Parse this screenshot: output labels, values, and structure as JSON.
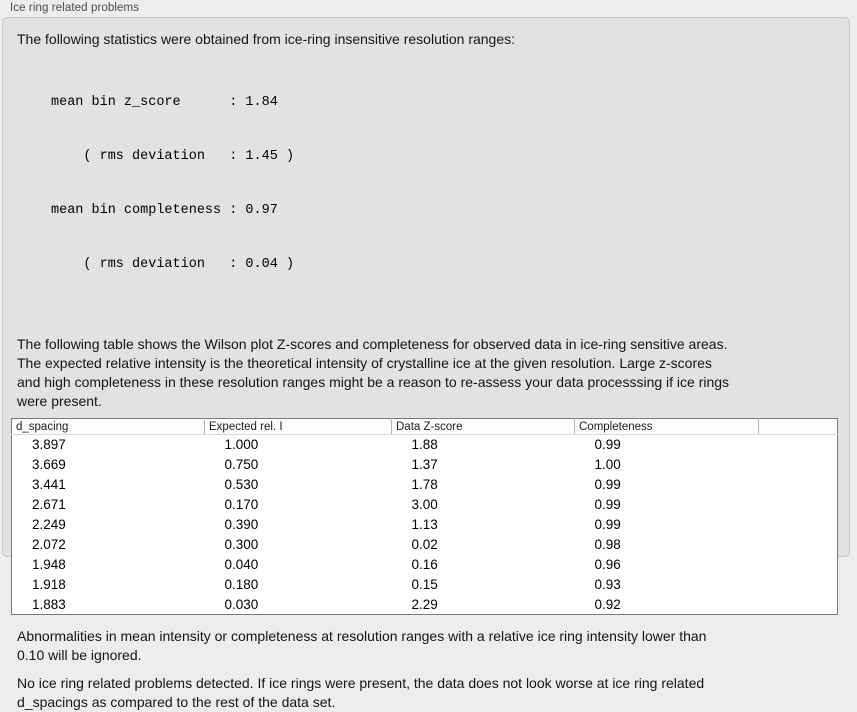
{
  "colors": {
    "page_bg": "#ededed",
    "panel_bg": "#e2e2e2",
    "panel_border": "#c7c7c7",
    "table_border": "#7a7a7a",
    "table_bg": "#ffffff"
  },
  "group_label": "Ice ring related problems",
  "intro": "The following statistics were obtained from ice-ring insensitive resolution ranges:",
  "stats_lines": [
    "mean bin z_score      : 1.84",
    "    ( rms deviation   : 1.45 )",
    "mean bin completeness : 0.97",
    "    ( rms deviation   : 0.04 )"
  ],
  "description_lines": [
    "The following table shows the Wilson plot Z-scores and completeness for observed data in ice-ring sensitive areas.",
    "The expected relative intensity is the theoretical intensity of crystalline ice at the given resolution. Large z-scores",
    "and high completeness in these resolution ranges might be a reason to re-assess your data processsing if ice rings",
    "were present."
  ],
  "table": {
    "columns": [
      "d_spacing",
      "Expected rel. I",
      "Data Z-score",
      "Completeness"
    ],
    "rows": [
      [
        "3.897",
        "1.000",
        "1.88",
        "0.99"
      ],
      [
        "3.669",
        "0.750",
        "1.37",
        "1.00"
      ],
      [
        "3.441",
        "0.530",
        "1.78",
        "0.99"
      ],
      [
        "2.671",
        "0.170",
        "3.00",
        "0.99"
      ],
      [
        "2.249",
        "0.390",
        "1.13",
        "0.99"
      ],
      [
        "2.072",
        "0.300",
        "0.02",
        "0.98"
      ],
      [
        "1.948",
        "0.040",
        "0.16",
        "0.96"
      ],
      [
        "1.918",
        "0.180",
        "0.15",
        "0.93"
      ],
      [
        "1.883",
        "0.030",
        "2.29",
        "0.92"
      ]
    ]
  },
  "footnote_lines": [
    "Abnormalities in mean intensity or completeness at resolution ranges with a relative ice ring intensity lower than",
    "0.10 will be ignored."
  ],
  "conclusion_lines": [
    "No ice ring related problems detected. If ice rings were present, the data does not look worse at ice ring related",
    "d_spacings as compared to the rest of the data set."
  ]
}
